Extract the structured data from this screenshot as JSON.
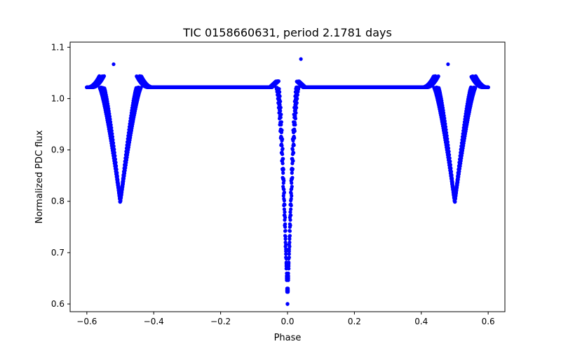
{
  "chart_data": {
    "type": "scatter",
    "title": "TIC 0158660631, period 2.1781 days",
    "xlabel": "Phase",
    "ylabel": "Normalized PDC flux",
    "xlim": [
      -0.65,
      0.65
    ],
    "ylim": [
      0.585,
      1.11
    ],
    "grid": false,
    "legend": "none",
    "color": "#0000ff",
    "xticks": [
      -0.6,
      -0.4,
      -0.2,
      0.0,
      0.2,
      0.4,
      0.6
    ],
    "xtick_labels": [
      "−0.6",
      "−0.4",
      "−0.2",
      "0.0",
      "0.2",
      "0.4",
      "0.6"
    ],
    "yticks": [
      0.6,
      0.7,
      0.8,
      0.9,
      1.0,
      1.1
    ],
    "ytick_labels": [
      "0.6",
      "0.7",
      "0.8",
      "0.9",
      "1.0",
      "1.1"
    ],
    "series": [
      {
        "style": "dense phase-folded light curve",
        "baseline": 1.022,
        "x_range": [
          -0.6,
          0.6
        ],
        "primary_eclipse": {
          "phase": 0.0,
          "min_flux": 0.6
        },
        "secondary_eclipse": {
          "phase": 0.5,
          "min_flux": 0.797
        },
        "outliers": [
          {
            "x": -0.52,
            "y": 1.067
          },
          {
            "x": 0.04,
            "y": 1.077
          },
          {
            "x": 0.48,
            "y": 1.067
          }
        ]
      }
    ]
  }
}
